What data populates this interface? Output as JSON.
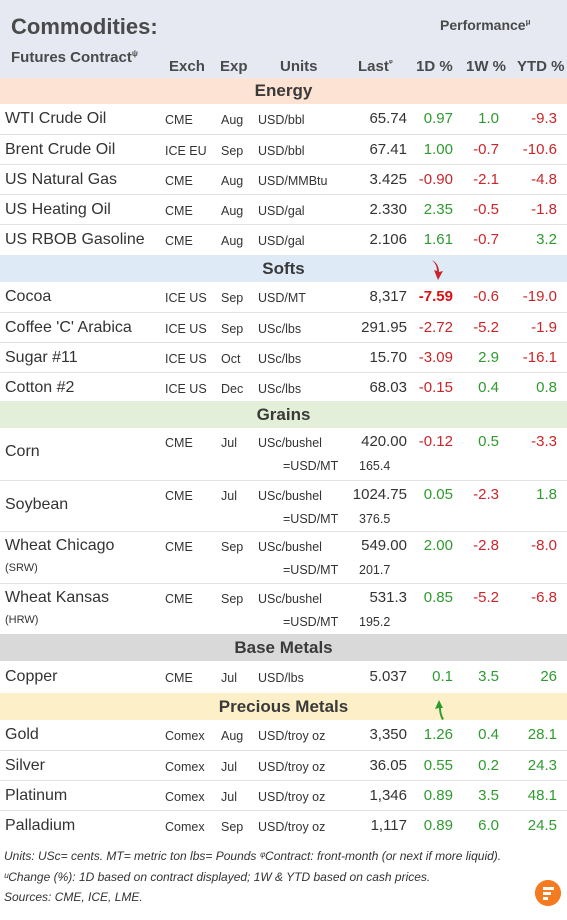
{
  "header": {
    "title": "Commodities:",
    "subtitle": "Futures Contract",
    "subtitle_mark": "ψ",
    "performance": "Performance",
    "performance_mark": "μ",
    "columns": {
      "exch": "Exch",
      "exp": "Exp",
      "units": "Units",
      "last": "Last",
      "last_mark": "ᵠ",
      "d1": "1D %",
      "w1": "1W %",
      "ytd": "YTD %"
    }
  },
  "sections": {
    "energy": "Energy",
    "softs": "Softs",
    "grains": "Grains",
    "base": "Base Metals",
    "precious": "Precious Metals"
  },
  "energy": [
    {
      "name": "WTI Crude Oil",
      "exch": "CME",
      "exp": "Aug",
      "units": "USD/bbl",
      "last": "65.74",
      "d1": "0.97",
      "w1": "1.0",
      "ytd": "-9.3"
    },
    {
      "name": "Brent Crude Oil",
      "exch": "ICE EU",
      "exp": "Sep",
      "units": "USD/bbl",
      "last": "67.41",
      "d1": "1.00",
      "w1": "-0.7",
      "ytd": "-10.6"
    },
    {
      "name": "US Natural Gas",
      "exch": "CME",
      "exp": "Aug",
      "units": "USD/MMBtu",
      "last": "3.425",
      "d1": "-0.90",
      "w1": "-2.1",
      "ytd": "-4.8"
    },
    {
      "name": "US Heating Oil",
      "exch": "CME",
      "exp": "Aug",
      "units": "USD/gal",
      "last": "2.330",
      "d1": "2.35",
      "w1": "-0.5",
      "ytd": "-1.8"
    },
    {
      "name": "US RBOB Gasoline",
      "exch": "CME",
      "exp": "Aug",
      "units": "USD/gal",
      "last": "2.106",
      "d1": "1.61",
      "w1": "-0.7",
      "ytd": "3.2"
    }
  ],
  "softs": [
    {
      "name": "Cocoa",
      "exch": "ICE US",
      "exp": "Sep",
      "units": "USD/MT",
      "last": "8,317",
      "d1": "-7.59",
      "w1": "-0.6",
      "ytd": "-19.0"
    },
    {
      "name": "Coffee 'C' Arabica",
      "exch": "ICE US",
      "exp": "Sep",
      "units": "USc/lbs",
      "last": "291.95",
      "d1": "-2.72",
      "w1": "-5.2",
      "ytd": "-1.9"
    },
    {
      "name": "Sugar #11",
      "exch": "ICE US",
      "exp": "Oct",
      "units": "USc/lbs",
      "last": "15.70",
      "d1": "-3.09",
      "w1": "2.9",
      "ytd": "-16.1"
    },
    {
      "name": "Cotton #2",
      "exch": "ICE US",
      "exp": "Dec",
      "units": "USc/lbs",
      "last": "68.03",
      "d1": "-0.15",
      "w1": "0.4",
      "ytd": "0.8"
    }
  ],
  "grains": [
    {
      "name": "Corn",
      "note": "",
      "exch": "CME",
      "exp": "Jul",
      "units": "USc/bushel",
      "last": "420.00",
      "d1": "-0.12",
      "w1": "0.5",
      "ytd": "-3.3",
      "eq": "=USD/MT",
      "eqv": "165.4"
    },
    {
      "name": "Soybean",
      "note": "",
      "exch": "CME",
      "exp": "Jul",
      "units": "USc/bushel",
      "last": "1024.75",
      "d1": "0.05",
      "w1": "-2.3",
      "ytd": "1.8",
      "eq": "=USD/MT",
      "eqv": "376.5"
    },
    {
      "name": "Wheat Chicago",
      "note": "(SRW)",
      "exch": "CME",
      "exp": "Sep",
      "units": "USc/bushel",
      "last": "549.00",
      "d1": "2.00",
      "w1": "-2.8",
      "ytd": "-8.0",
      "eq": "=USD/MT",
      "eqv": "201.7"
    },
    {
      "name": "Wheat Kansas",
      "note": "(HRW)",
      "exch": "CME",
      "exp": "Sep",
      "units": "USc/bushel",
      "last": "531.3",
      "d1": "0.85",
      "w1": "-5.2",
      "ytd": "-6.8",
      "eq": "=USD/MT",
      "eqv": "195.2"
    }
  ],
  "base": [
    {
      "name": "Copper",
      "exch": "CME",
      "exp": "Jul",
      "units": "USD/lbs",
      "last": "5.037",
      "d1": "0.1",
      "w1": "3.5",
      "ytd": "26"
    }
  ],
  "precious": [
    {
      "name": "Gold",
      "exch": "Comex",
      "exp": "Aug",
      "units": "USD/troy oz",
      "last": "3,350",
      "d1": "1.26",
      "w1": "0.4",
      "ytd": "28.1"
    },
    {
      "name": "Silver",
      "exch": "Comex",
      "exp": "Jul",
      "units": "USD/troy oz",
      "last": "36.05",
      "d1": "0.55",
      "w1": "0.2",
      "ytd": "24.3"
    },
    {
      "name": "Platinum",
      "exch": "Comex",
      "exp": "Jul",
      "units": "USD/troy oz",
      "last": "1,346",
      "d1": "0.89",
      "w1": "3.5",
      "ytd": "48.1"
    },
    {
      "name": "Palladium",
      "exch": "Comex",
      "exp": "Sep",
      "units": "USD/troy oz",
      "last": "1,117",
      "d1": "0.89",
      "w1": "6.0",
      "ytd": "24.5"
    }
  ],
  "footer": {
    "line1": "Units: USc= cents.   MT= metric ton    lbs= Pounds  ᵠContract: front-month (or next if more liquid).",
    "line2": "ᵘChange (%): 1D based on contract displayed; 1W & YTD based on cash prices.",
    "line3": "Sources: CME, ICE, LME."
  },
  "colors": {
    "header_bg": "#e6e9f2",
    "energy_bg": "#fde3d3",
    "softs_bg": "#deeaf5",
    "grains_bg": "#e3efd9",
    "base_bg": "#d9d9d9",
    "precious_bg": "#fdf0c8",
    "positive": "#2f9a2f",
    "negative": "#c8262a",
    "logo": "#f47b20"
  },
  "icons": {
    "down_arrow": "red-down-arrow-icon",
    "up_arrow": "green-up-arrow-icon",
    "logo": "brand-logo-icon"
  }
}
